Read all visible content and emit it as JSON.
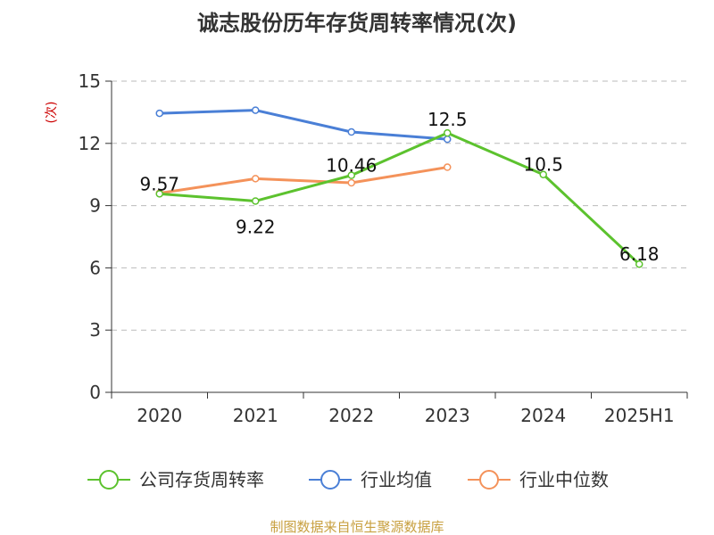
{
  "chart_data": {
    "type": "line",
    "title": "诚志股份历年存货周转率情况(次)",
    "ylabel": "(次)",
    "ylim": [
      0,
      15
    ],
    "yticks": [
      0,
      3,
      6,
      9,
      12,
      15
    ],
    "categories": [
      "2020",
      "2021",
      "2022",
      "2023",
      "2024",
      "2025H1"
    ],
    "grid": true,
    "legend_position": "bottom",
    "series": [
      {
        "name": "公司存货周转率",
        "color": "#5cc22e",
        "values": [
          9.57,
          9.22,
          10.46,
          12.5,
          10.5,
          6.18
        ],
        "labels": [
          "9.57",
          "9.22",
          "10.46",
          "12.5",
          "10.5",
          "6.18"
        ]
      },
      {
        "name": "行业均值",
        "color": "#4a7fd6",
        "values": [
          13.45,
          13.6,
          12.55,
          12.2,
          null,
          null
        ]
      },
      {
        "name": "行业中位数",
        "color": "#f4925a",
        "values": [
          9.6,
          10.3,
          10.1,
          10.85,
          null,
          null
        ]
      }
    ],
    "ylabel_color": "#cc0000"
  },
  "source": {
    "text": "制图数据来自恒生聚源数据库",
    "color": "#c8a040"
  }
}
